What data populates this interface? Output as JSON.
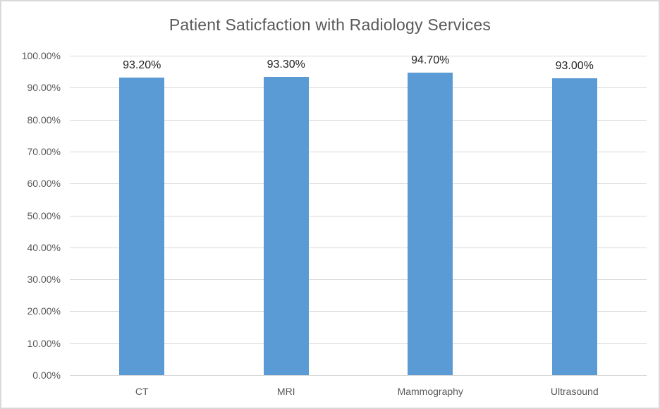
{
  "chart_data": {
    "type": "bar",
    "title": "Patient Saticfaction with Radiology Services",
    "categories": [
      "CT",
      "MRI",
      "Mammography",
      "Ultrasound"
    ],
    "values": [
      93.2,
      93.3,
      94.7,
      93.0
    ],
    "data_labels": [
      "93.20%",
      "93.30%",
      "94.70%",
      "93.00%"
    ],
    "xlabel": "",
    "ylabel": "",
    "ylim": [
      0,
      100
    ],
    "yticks": [
      {
        "value": 0,
        "label": "0.00%"
      },
      {
        "value": 10,
        "label": "10.00%"
      },
      {
        "value": 20,
        "label": "20.00%"
      },
      {
        "value": 30,
        "label": "30.00%"
      },
      {
        "value": 40,
        "label": "40.00%"
      },
      {
        "value": 50,
        "label": "50.00%"
      },
      {
        "value": 60,
        "label": "60.00%"
      },
      {
        "value": 70,
        "label": "70.00%"
      },
      {
        "value": 80,
        "label": "80.00%"
      },
      {
        "value": 90,
        "label": "90.00%"
      },
      {
        "value": 100,
        "label": "100.00%"
      }
    ],
    "grid": true,
    "legend": "none",
    "colors": {
      "bar": "#5B9BD5",
      "title_text": "#595959",
      "axis_text": "#595959",
      "data_label_text": "#222222",
      "gridline": "#D9D9D9",
      "border": "#D9D9D9",
      "background": "#FFFFFF"
    }
  }
}
